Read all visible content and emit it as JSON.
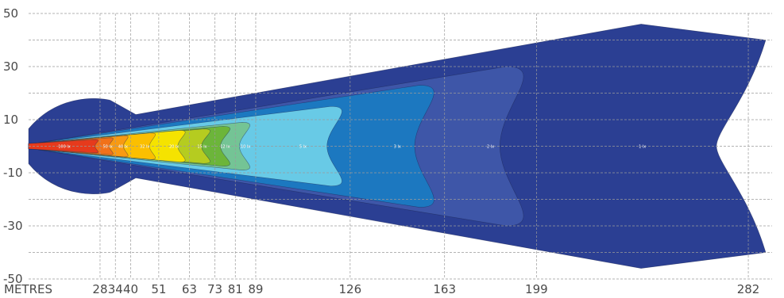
{
  "chart_data": {
    "type": "heatmap",
    "title": "",
    "x_unit_label": "METRES",
    "x_ticks": [
      "28",
      "34",
      "40",
      "51",
      "63",
      "73",
      "81",
      "89",
      "126",
      "163",
      "199",
      "282"
    ],
    "y_ticks": [
      "50",
      "30",
      "10",
      "-10",
      "-30",
      "-50"
    ],
    "ylim": [
      -50,
      50
    ],
    "grid": true,
    "zones": [
      {
        "label": "1 lx",
        "reach_m": 282,
        "half_width_m": 46,
        "color": "#2b3f93"
      },
      {
        "label": "2 lx",
        "reach_m": 199,
        "half_width_m": 30,
        "color": "#3e56a8"
      },
      {
        "label": "3 lx",
        "reach_m": 163,
        "half_width_m": 23,
        "color": "#1c78c0"
      },
      {
        "label": "5 lx",
        "reach_m": 126,
        "half_width_m": 15,
        "color": "#68cae6"
      },
      {
        "label": "10 lx",
        "reach_m": 89,
        "half_width_m": 9,
        "color": "#74c495"
      },
      {
        "label": "12 lx",
        "reach_m": 81,
        "half_width_m": 7.5,
        "color": "#6cb53a"
      },
      {
        "label": "15 lx",
        "reach_m": 73,
        "half_width_m": 6.5,
        "color": "#b5cc20"
      },
      {
        "label": "20 lx",
        "reach_m": 63,
        "half_width_m": 6,
        "color": "#f5e300"
      },
      {
        "label": "32 lx",
        "reach_m": 51,
        "half_width_m": 5,
        "color": "#fbbf00"
      },
      {
        "label": "40 lx",
        "reach_m": 40,
        "half_width_m": 4,
        "color": "#f89a12"
      },
      {
        "label": "50 lx",
        "reach_m": 34,
        "half_width_m": 3.2,
        "color": "#f17119"
      },
      {
        "label": "100 lx",
        "reach_m": 28,
        "half_width_m": 2.5,
        "color": "#e63a1c"
      }
    ]
  }
}
